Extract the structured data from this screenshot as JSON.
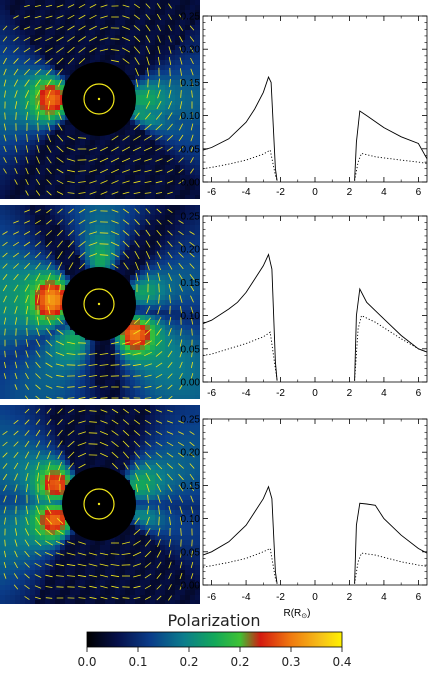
{
  "colorbar": {
    "title": "Polarization",
    "ticks": [
      "0.0",
      "0.1",
      "0.2",
      "0.2",
      "0.3",
      "0.4"
    ]
  },
  "x_axis_label": "R(R",
  "x_axis_label_sub": "⊙",
  "x_axis_label_end": ")",
  "chart_data": [
    {
      "type": "line",
      "xlim": [
        -6.5,
        6.5
      ],
      "ylim": [
        0,
        0.25
      ],
      "xticks": [
        "-6",
        "-4",
        "-2",
        "0",
        "2",
        "4",
        "6"
      ],
      "yticks": [
        "0.00",
        "0.05",
        "0.10",
        "0.15",
        "0.20",
        "0.25"
      ],
      "series": [
        {
          "style": "solid",
          "left": [
            [
              -6.5,
              0.048
            ],
            [
              -6.0,
              0.052
            ],
            [
              -5.0,
              0.065
            ],
            [
              -4.0,
              0.09
            ],
            [
              -3.5,
              0.11
            ],
            [
              -3.0,
              0.135
            ],
            [
              -2.7,
              0.158
            ],
            [
              -2.55,
              0.15
            ],
            [
              -2.3,
              0.02
            ],
            [
              -2.2,
              0.002
            ]
          ],
          "right": [
            [
              2.3,
              0.002
            ],
            [
              2.4,
              0.06
            ],
            [
              2.6,
              0.107
            ],
            [
              3.0,
              0.1
            ],
            [
              4.0,
              0.082
            ],
            [
              5.0,
              0.068
            ],
            [
              6.0,
              0.058
            ],
            [
              6.5,
              0.035
            ]
          ]
        },
        {
          "style": "dotted",
          "left": [
            [
              -6.5,
              0.02
            ],
            [
              -6.0,
              0.022
            ],
            [
              -5.0,
              0.027
            ],
            [
              -4.0,
              0.033
            ],
            [
              -3.0,
              0.042
            ],
            [
              -2.6,
              0.048
            ],
            [
              -2.3,
              0.01
            ],
            [
              -2.2,
              0.002
            ]
          ],
          "right": [
            [
              2.3,
              0.002
            ],
            [
              2.5,
              0.03
            ],
            [
              2.7,
              0.043
            ],
            [
              3.5,
              0.038
            ],
            [
              5.0,
              0.033
            ],
            [
              6.0,
              0.03
            ],
            [
              6.5,
              0.028
            ]
          ]
        }
      ]
    },
    {
      "type": "line",
      "xlim": [
        -6.5,
        6.5
      ],
      "ylim": [
        0,
        0.25
      ],
      "xticks": [
        "-6",
        "-4",
        "-2",
        "0",
        "2",
        "4",
        "6"
      ],
      "yticks": [
        "0.00",
        "0.05",
        "0.10",
        "0.15",
        "0.20",
        "0.25"
      ],
      "series": [
        {
          "style": "solid",
          "left": [
            [
              -6.5,
              0.088
            ],
            [
              -6.0,
              0.093
            ],
            [
              -5.0,
              0.11
            ],
            [
              -4.5,
              0.12
            ],
            [
              -4.0,
              0.135
            ],
            [
              -3.5,
              0.155
            ],
            [
              -3.0,
              0.175
            ],
            [
              -2.7,
              0.192
            ],
            [
              -2.5,
              0.17
            ],
            [
              -2.3,
              0.03
            ],
            [
              -2.2,
              0.002
            ]
          ],
          "right": [
            [
              2.3,
              0.002
            ],
            [
              2.4,
              0.1
            ],
            [
              2.6,
              0.14
            ],
            [
              3.0,
              0.12
            ],
            [
              4.0,
              0.095
            ],
            [
              5.0,
              0.07
            ],
            [
              6.0,
              0.05
            ],
            [
              6.5,
              0.045
            ]
          ]
        },
        {
          "style": "dotted",
          "left": [
            [
              -6.5,
              0.04
            ],
            [
              -6.0,
              0.042
            ],
            [
              -5.0,
              0.05
            ],
            [
              -4.0,
              0.058
            ],
            [
              -3.0,
              0.068
            ],
            [
              -2.6,
              0.075
            ],
            [
              -2.3,
              0.02
            ],
            [
              -2.2,
              0.002
            ]
          ],
          "right": [
            [
              2.3,
              0.002
            ],
            [
              2.5,
              0.08
            ],
            [
              2.7,
              0.1
            ],
            [
              3.5,
              0.09
            ],
            [
              5.0,
              0.065
            ],
            [
              6.0,
              0.05
            ],
            [
              6.5,
              0.045
            ]
          ]
        }
      ]
    },
    {
      "type": "line",
      "xlim": [
        -6.5,
        6.5
      ],
      "ylim": [
        0,
        0.25
      ],
      "xticks": [
        "-6",
        "-4",
        "-2",
        "0",
        "2",
        "4",
        "6"
      ],
      "yticks": [
        "0.00",
        "0.05",
        "0.10",
        "0.15",
        "0.20",
        "0.25"
      ],
      "series": [
        {
          "style": "solid",
          "left": [
            [
              -6.5,
              0.045
            ],
            [
              -6.0,
              0.05
            ],
            [
              -5.0,
              0.065
            ],
            [
              -4.0,
              0.09
            ],
            [
              -3.5,
              0.11
            ],
            [
              -3.0,
              0.13
            ],
            [
              -2.7,
              0.148
            ],
            [
              -2.5,
              0.13
            ],
            [
              -2.3,
              0.02
            ],
            [
              -2.2,
              0.002
            ]
          ],
          "right": [
            [
              2.3,
              0.002
            ],
            [
              2.4,
              0.09
            ],
            [
              2.6,
              0.123
            ],
            [
              3.0,
              0.122
            ],
            [
              3.5,
              0.12
            ],
            [
              4.0,
              0.1
            ],
            [
              5.0,
              0.075
            ],
            [
              6.0,
              0.055
            ],
            [
              6.5,
              0.048
            ]
          ]
        },
        {
          "style": "dotted",
          "left": [
            [
              -6.5,
              0.027
            ],
            [
              -6.0,
              0.029
            ],
            [
              -5.0,
              0.034
            ],
            [
              -4.0,
              0.04
            ],
            [
              -3.0,
              0.05
            ],
            [
              -2.6,
              0.055
            ],
            [
              -2.3,
              0.01
            ],
            [
              -2.2,
              0.002
            ]
          ],
          "right": [
            [
              2.3,
              0.002
            ],
            [
              2.5,
              0.035
            ],
            [
              2.7,
              0.048
            ],
            [
              3.5,
              0.045
            ],
            [
              5.0,
              0.035
            ],
            [
              6.0,
              0.03
            ],
            [
              6.5,
              0.028
            ]
          ]
        }
      ]
    }
  ],
  "images": [
    {
      "streamers": [
        {
          "angle": 0,
          "width": 26,
          "length": 1.0,
          "intensity": 0.6,
          "peak": 0.2
        },
        {
          "angle": 180,
          "width": 30,
          "length": 1.0,
          "intensity": 0.75,
          "peak": 0.25
        },
        {
          "angle": 165,
          "width": 18,
          "length": 0.95,
          "intensity": 0.45,
          "peak": 0.22
        },
        {
          "angle": 340,
          "width": 14,
          "length": 0.9,
          "intensity": 0.5,
          "peak": 0.2
        }
      ]
    },
    {
      "streamers": [
        {
          "angle": 88,
          "width": 22,
          "length": 1.0,
          "intensity": 0.6,
          "peak": 0.22
        },
        {
          "angle": 15,
          "width": 22,
          "length": 1.0,
          "intensity": 0.55,
          "peak": 0.2
        },
        {
          "angle": 175,
          "width": 34,
          "length": 1.0,
          "intensity": 0.9,
          "peak": 0.28
        },
        {
          "angle": 235,
          "width": 26,
          "length": 1.0,
          "intensity": 0.6,
          "peak": 0.22
        },
        {
          "angle": 320,
          "width": 28,
          "length": 1.0,
          "intensity": 0.8,
          "peak": 0.27
        }
      ]
    },
    {
      "streamers": [
        {
          "angle": 25,
          "width": 26,
          "length": 1.0,
          "intensity": 0.6,
          "peak": 0.22
        },
        {
          "angle": 155,
          "width": 26,
          "length": 1.0,
          "intensity": 0.7,
          "peak": 0.25
        },
        {
          "angle": 200,
          "width": 26,
          "length": 1.0,
          "intensity": 0.75,
          "peak": 0.26
        },
        {
          "angle": 345,
          "width": 16,
          "length": 0.8,
          "intensity": 0.4,
          "peak": 0.2
        }
      ]
    }
  ]
}
